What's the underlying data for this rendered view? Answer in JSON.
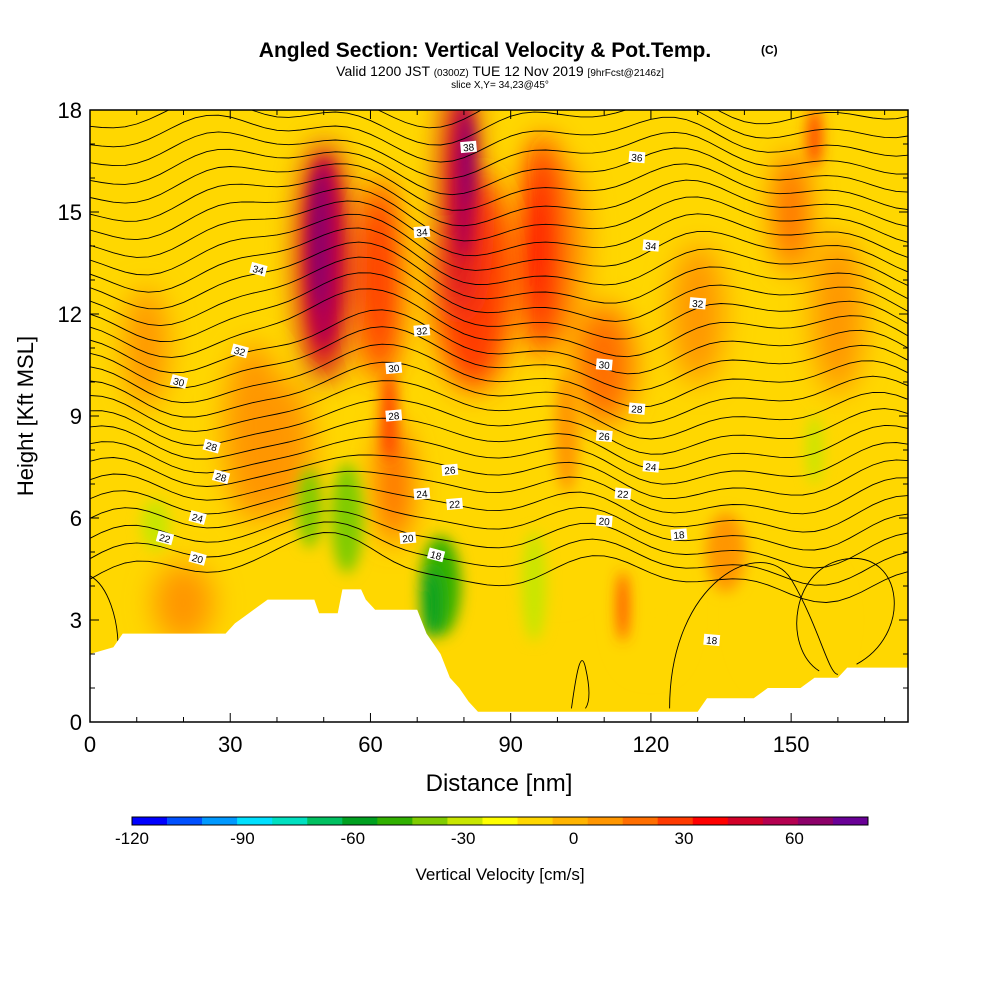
{
  "header": {
    "title": "Angled Section: Vertical Velocity & Pot.Temp.",
    "title_unit": "(C)",
    "valid_prefix": "Valid 1200 JST",
    "valid_utc": "(0300Z)",
    "valid_date": "TUE 12 Nov 2019",
    "forecast": "[9hrFcst@2146z]",
    "slice": "slice X,Y= 34,23@45°"
  },
  "chart_data": {
    "type": "heatmap",
    "xlabel": "Distance [nm]",
    "ylabel": "Height [Kft MSL]",
    "xlim": [
      0,
      175
    ],
    "ylim": [
      0,
      18
    ],
    "x_ticks": [
      0,
      30,
      60,
      90,
      120,
      150
    ],
    "y_ticks": [
      0,
      3,
      6,
      9,
      12,
      15,
      18
    ],
    "colorbar": {
      "label": "Vertical Velocity [cm/s]",
      "range": [
        -120,
        80
      ],
      "tick_values": [
        -120,
        -90,
        -60,
        -30,
        0,
        30,
        60
      ],
      "colors": [
        "#0000ff",
        "#0050ff",
        "#0099ff",
        "#00e0ff",
        "#00e0c0",
        "#00c060",
        "#00a020",
        "#30b000",
        "#80cc00",
        "#c8e600",
        "#ffff00",
        "#ffd700",
        "#ffb400",
        "#ff9600",
        "#ff6e00",
        "#ff3a00",
        "#ff0000",
        "#d20028",
        "#b40050",
        "#8c0069",
        "#690096"
      ]
    },
    "terrain_kft": [
      [
        0,
        2.0
      ],
      [
        5,
        2.2
      ],
      [
        7,
        2.6
      ],
      [
        29,
        2.6
      ],
      [
        31,
        2.9
      ],
      [
        33,
        3.1
      ],
      [
        36,
        3.4
      ],
      [
        38,
        3.6
      ],
      [
        48,
        3.6
      ],
      [
        49,
        3.2
      ],
      [
        53,
        3.2
      ],
      [
        54,
        3.9
      ],
      [
        58,
        3.9
      ],
      [
        59,
        3.6
      ],
      [
        61,
        3.3
      ],
      [
        70,
        3.3
      ],
      [
        72,
        2.6
      ],
      [
        75,
        2.0
      ],
      [
        77,
        1.3
      ],
      [
        79,
        1.0
      ],
      [
        81,
        0.6
      ],
      [
        83,
        0.3
      ],
      [
        85,
        0.3
      ],
      [
        130,
        0.3
      ],
      [
        132,
        0.7
      ],
      [
        142,
        0.7
      ],
      [
        145,
        1.0
      ],
      [
        152,
        1.0
      ],
      [
        155,
        1.3
      ],
      [
        160,
        1.3
      ],
      [
        162,
        1.6
      ],
      [
        175,
        1.6
      ]
    ],
    "velocity_features": [
      {
        "x": 50,
        "y": 13.5,
        "value": 75
      },
      {
        "x": 80,
        "y": 16,
        "value": 55
      },
      {
        "x": 75,
        "y": 4,
        "value": -60
      },
      {
        "x": 55,
        "y": 6,
        "value": -45
      },
      {
        "x": 95,
        "y": 4,
        "value": -30
      },
      {
        "x": 155,
        "y": 8,
        "value": -25
      },
      {
        "x": 114,
        "y": 3.5,
        "value": 35
      },
      {
        "x": 155,
        "y": 17,
        "value": 35
      }
    ],
    "contour_labels": [
      {
        "text": "38",
        "x": 81,
        "y": 16.9
      },
      {
        "text": "36",
        "x": 117,
        "y": 16.6
      },
      {
        "text": "34",
        "x": 36,
        "y": 13.3
      },
      {
        "text": "34",
        "x": 71,
        "y": 14.4
      },
      {
        "text": "34",
        "x": 120,
        "y": 14.0
      },
      {
        "text": "32",
        "x": 32,
        "y": 10.9
      },
      {
        "text": "32",
        "x": 71,
        "y": 11.5
      },
      {
        "text": "32",
        "x": 130,
        "y": 12.3
      },
      {
        "text": "30",
        "x": 19,
        "y": 10.0
      },
      {
        "text": "30",
        "x": 65,
        "y": 10.4
      },
      {
        "text": "30",
        "x": 110,
        "y": 10.5
      },
      {
        "text": "28",
        "x": 26,
        "y": 8.1
      },
      {
        "text": "28",
        "x": 65,
        "y": 9.0
      },
      {
        "text": "28",
        "x": 117,
        "y": 9.2
      },
      {
        "text": "28",
        "x": 28,
        "y": 7.2
      },
      {
        "text": "26",
        "x": 77,
        "y": 7.4
      },
      {
        "text": "26",
        "x": 110,
        "y": 8.4
      },
      {
        "text": "24",
        "x": 23,
        "y": 6.0
      },
      {
        "text": "24",
        "x": 71,
        "y": 6.7
      },
      {
        "text": "24",
        "x": 120,
        "y": 7.5
      },
      {
        "text": "22",
        "x": 16,
        "y": 5.4
      },
      {
        "text": "22",
        "x": 78,
        "y": 6.4
      },
      {
        "text": "22",
        "x": 114,
        "y": 6.7
      },
      {
        "text": "20",
        "x": 23,
        "y": 4.8
      },
      {
        "text": "20",
        "x": 68,
        "y": 5.4
      },
      {
        "text": "20",
        "x": 110,
        "y": 5.9
      },
      {
        "text": "18",
        "x": 74,
        "y": 4.9
      },
      {
        "text": "18",
        "x": 126,
        "y": 5.5
      },
      {
        "text": "18",
        "x": 133,
        "y": 2.4
      }
    ]
  }
}
